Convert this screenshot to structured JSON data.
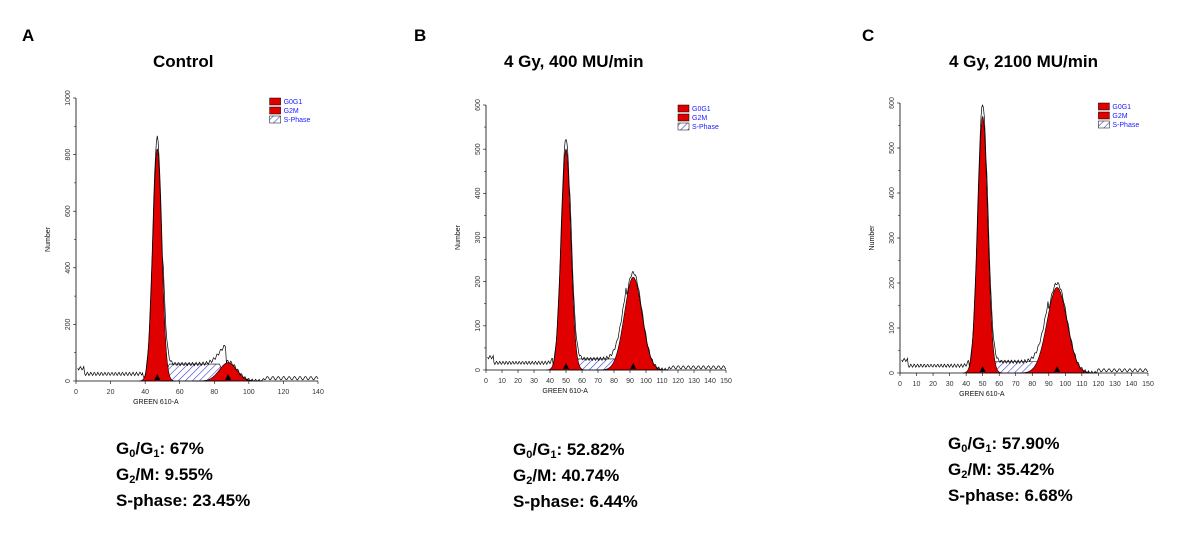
{
  "chart_data": [
    {
      "type": "area",
      "panel_label": "A",
      "title": "Control",
      "xlabel": "GREEN 610-A",
      "ylabel": "Number",
      "xlim": [
        0,
        140
      ],
      "ylim": [
        0,
        1000
      ],
      "xticks": [
        "0",
        "20",
        "40",
        "60",
        "80",
        "100",
        "120",
        "140"
      ],
      "yticks": [
        "0",
        "200",
        "400",
        "600",
        "800",
        "1000"
      ],
      "legend": [
        "G0G1",
        "G2M",
        "S-Phase"
      ],
      "peaks": {
        "g0g1_position": 47,
        "g0g1_height": 820,
        "g0g1_width": 2.6,
        "g2m_position": 88,
        "g2m_height": 65,
        "g2m_width": 5,
        "s_phase_level": 60,
        "s_phase_range": [
          50,
          87
        ]
      },
      "stats": {
        "g0g1": "67%",
        "g2m": "9.55%",
        "s_phase": "23.45%"
      }
    },
    {
      "type": "area",
      "panel_label": "B",
      "title": "4 Gy, 400 MU/min",
      "xlabel": "GREEN 610-A",
      "ylabel": "Number",
      "xlim": [
        0,
        150
      ],
      "ylim": [
        0,
        600
      ],
      "xticks": [
        "0",
        "10",
        "20",
        "30",
        "40",
        "50",
        "60",
        "70",
        "80",
        "90",
        "100",
        "110",
        "120",
        "130",
        "140",
        "150"
      ],
      "yticks": [
        "0",
        "100",
        "200",
        "300",
        "400",
        "500",
        "600"
      ],
      "legend": [
        "G0G1",
        "G2M",
        "S-Phase"
      ],
      "peaks": {
        "g0g1_position": 50,
        "g0g1_height": 500,
        "g0g1_width": 3,
        "g2m_position": 92,
        "g2m_height": 210,
        "g2m_width": 5.5,
        "s_phase_level": 25,
        "s_phase_range": [
          52,
          88
        ]
      },
      "stats": {
        "g0g1": "52.82%",
        "g2m": "40.74%",
        "s_phase": "6.44%"
      }
    },
    {
      "type": "area",
      "panel_label": "C",
      "title": "4 Gy, 2100 MU/min",
      "xlabel": "GREEN 610-A",
      "ylabel": "Number",
      "xlim": [
        0,
        150
      ],
      "ylim": [
        0,
        600
      ],
      "xticks": [
        "0",
        "10",
        "20",
        "30",
        "40",
        "50",
        "60",
        "70",
        "80",
        "90",
        "100",
        "110",
        "120",
        "130",
        "140",
        "150"
      ],
      "yticks": [
        "0",
        "100",
        "200",
        "300",
        "400",
        "500",
        "600"
      ],
      "legend": [
        "G0G1",
        "G2M",
        "S-Phase"
      ],
      "peaks": {
        "g0g1_position": 50,
        "g0g1_height": 570,
        "g0g1_width": 3,
        "g2m_position": 95,
        "g2m_height": 190,
        "g2m_width": 6,
        "s_phase_level": 25,
        "s_phase_range": [
          52,
          90
        ]
      },
      "stats": {
        "g0g1": "57.90%",
        "g2m": "35.42%",
        "s_phase": "6.68%"
      }
    }
  ],
  "stat_labels": {
    "g0g1_prefix": "G",
    "g0g1_sub0": "0",
    "g0g1_mid": "/G",
    "g0g1_sub1": "1",
    "g0g1_suffix": ": ",
    "g2m_prefix": "G",
    "g2m_sub": "2",
    "g2m_suffix": "/M: ",
    "s_phase_label": "S-phase: "
  },
  "colors": {
    "peak_fill": "#e00000",
    "s_phase_hatch": "#3b3bd6",
    "axis": "#000000",
    "legend_text": "#1a1aff"
  }
}
